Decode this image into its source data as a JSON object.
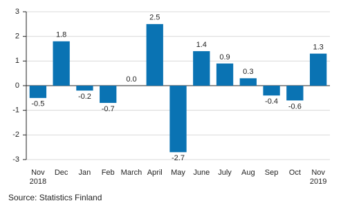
{
  "chart_data": {
    "type": "bar",
    "categories": [
      "Nov\n2018",
      "Dec",
      "Jan",
      "Feb",
      "March",
      "April",
      "May",
      "June",
      "July",
      "Aug",
      "Sep",
      "Oct",
      "Nov\n2019"
    ],
    "values": [
      -0.5,
      1.8,
      -0.2,
      -0.7,
      0.0,
      2.5,
      -2.7,
      1.4,
      0.9,
      0.3,
      -0.4,
      -0.6,
      1.3
    ],
    "value_labels": [
      "-0.5",
      "1.8",
      "-0.2",
      "-0.7",
      "0.0",
      "2.5",
      "-2.7",
      "1.4",
      "0.9",
      "0.3",
      "-0.4",
      "-0.6",
      "1.3"
    ],
    "color": "#0a73b3",
    "ylim": [
      -3,
      3
    ],
    "yticks": [
      -3,
      -2,
      -1,
      0,
      1,
      2,
      3
    ],
    "grid": true,
    "source": "Source: Statistics Finland"
  }
}
